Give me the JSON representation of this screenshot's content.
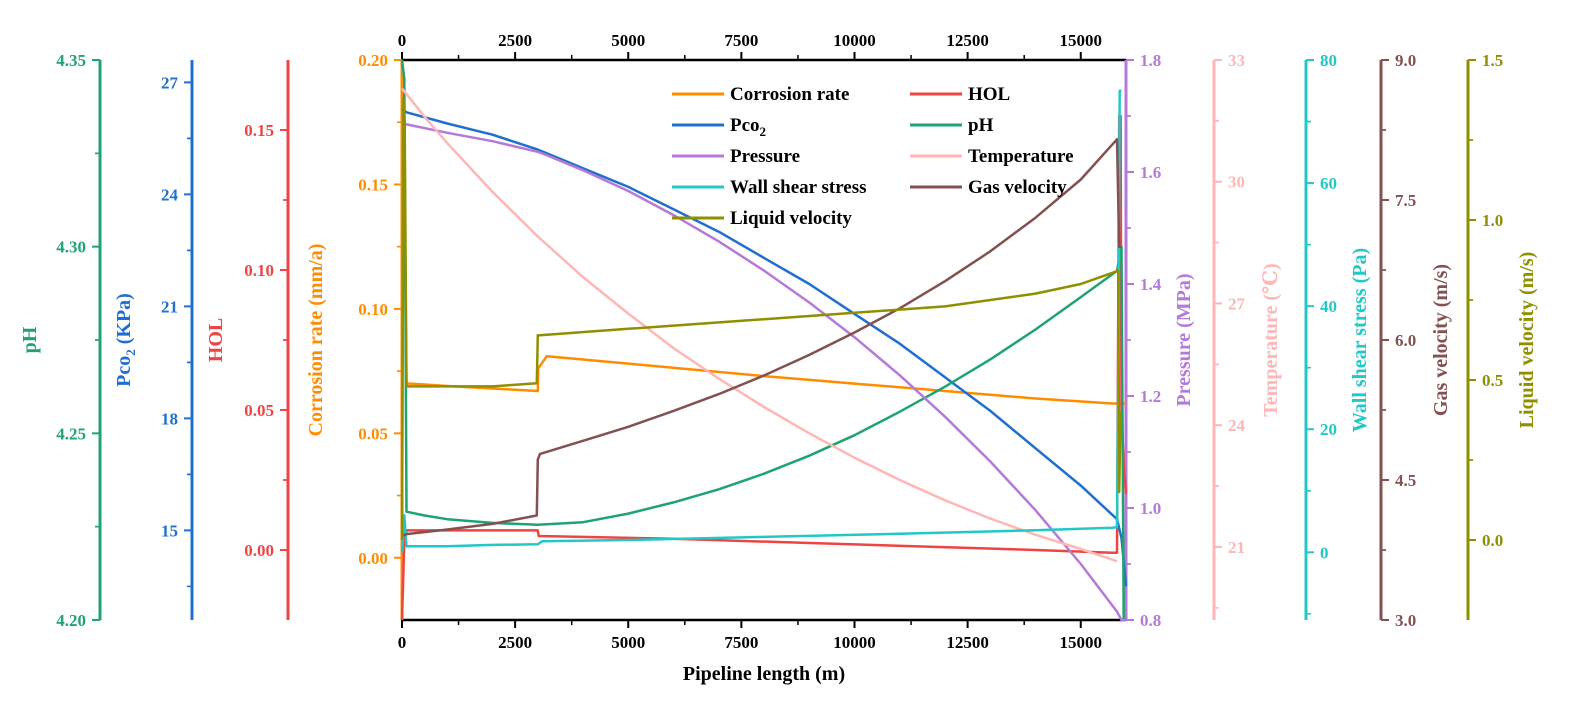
{
  "chart_data": {
    "type": "line",
    "xlabel": "Pipeline length (m)",
    "x_ticks": [
      0,
      2500,
      5000,
      7500,
      10000,
      12500,
      15000
    ],
    "x_ticks_top": [
      0,
      2500,
      5000,
      7500,
      10000,
      12500,
      15000
    ],
    "xlim": [
      0,
      16000
    ],
    "grid": false,
    "legend_position": "top-center",
    "axes": [
      {
        "id": "corr",
        "label": "Corrosion rate (mm/a)",
        "color": "#FF8C00",
        "ylim": [
          -0.025,
          0.2
        ],
        "ticks": [
          0.0,
          0.05,
          0.1,
          0.15,
          0.2
        ],
        "tick_labels": [
          "0.00",
          "0.05",
          "0.10",
          "0.15",
          "0.20"
        ],
        "side": "left-main"
      },
      {
        "id": "hol",
        "label": "HOL",
        "color": "#EE4444",
        "ylim": [
          -0.025,
          0.175
        ],
        "ticks": [
          0.0,
          0.05,
          0.1,
          0.15
        ],
        "tick_labels": [
          "0.00",
          "0.05",
          "0.10",
          "0.15"
        ],
        "side": "left"
      },
      {
        "id": "pco2",
        "label": "Pco₂ (KPa)",
        "color": "#1F6FD0",
        "ylim": [
          12.6,
          27.6
        ],
        "ticks": [
          15,
          18,
          21,
          24,
          27
        ],
        "tick_labels": [
          "15",
          "18",
          "21",
          "24",
          "27"
        ],
        "side": "left"
      },
      {
        "id": "ph",
        "label": "pH",
        "color": "#1FA371",
        "ylim": [
          4.2,
          4.35
        ],
        "ticks": [
          4.2,
          4.25,
          4.3,
          4.35
        ],
        "tick_labels": [
          "4.20",
          "4.25",
          "4.30",
          "4.35"
        ],
        "side": "left"
      },
      {
        "id": "press",
        "label": "Pressure (MPa)",
        "color": "#B57AD8",
        "ylim": [
          0.8,
          1.8
        ],
        "ticks": [
          0.8,
          1.0,
          1.2,
          1.4,
          1.6,
          1.8
        ],
        "tick_labels": [
          "0.8",
          "1.0",
          "1.2",
          "1.4",
          "1.6",
          "1.8"
        ],
        "side": "right-main"
      },
      {
        "id": "temp",
        "label": "Temperature (℃)",
        "color": "#FFB6B6",
        "ylim": [
          19.2,
          33
        ],
        "ticks": [
          21,
          24,
          27,
          30,
          33
        ],
        "tick_labels": [
          "21",
          "24",
          "27",
          "30",
          "33"
        ],
        "side": "right"
      },
      {
        "id": "wss",
        "label": "Wall shear stress (Pa)",
        "color": "#22C8C8",
        "ylim": [
          -11,
          80
        ],
        "ticks": [
          0,
          20,
          40,
          60,
          80
        ],
        "tick_labels": [
          "0",
          "20",
          "40",
          "60",
          "80"
        ],
        "side": "right"
      },
      {
        "id": "gasv",
        "label": "Gas velocity (m/s)",
        "color": "#845050",
        "ylim": [
          3.0,
          9.0
        ],
        "ticks": [
          3.0,
          4.5,
          6.0,
          7.5,
          9.0
        ],
        "tick_labels": [
          "3.0",
          "4.5",
          "6.0",
          "7.5",
          "9.0"
        ],
        "side": "right"
      },
      {
        "id": "liqv",
        "label": "Liquid velocity (m/s)",
        "color": "#8F8F00",
        "ylim": [
          -0.25,
          1.5
        ],
        "ticks": [
          0.0,
          0.5,
          1.0,
          1.5
        ],
        "tick_labels": [
          "0.0",
          "0.5",
          "1.0",
          "1.5"
        ],
        "side": "right"
      }
    ],
    "series": [
      {
        "name": "Corrosion rate",
        "axis": "corr",
        "color": "#FF8C00",
        "x": [
          0,
          30,
          100,
          200,
          1000,
          2000,
          3000,
          3010,
          3200,
          5000,
          8000,
          10000,
          12000,
          14000,
          15700,
          15780,
          15820,
          15850,
          15870,
          15900,
          15950,
          16000
        ],
        "y": [
          0.0,
          0.18,
          0.07,
          0.07,
          0.069,
          0.068,
          0.067,
          0.076,
          0.081,
          0.078,
          0.073,
          0.07,
          0.067,
          0.064,
          0.062,
          0.062,
          0.062,
          0.062,
          0.062,
          0.062,
          0.062,
          0.062
        ]
      },
      {
        "name": "HOL",
        "axis": "hol",
        "color": "#EE4444",
        "x": [
          0,
          50,
          100,
          200,
          3000,
          3020,
          6000,
          10000,
          14000,
          15700,
          15800,
          15850,
          15880,
          15900,
          15950,
          16000
        ],
        "y": [
          -0.025,
          0.003,
          0.007,
          0.007,
          0.007,
          0.005,
          0.004,
          0.002,
          0.0,
          -0.001,
          -0.001,
          0.155,
          0.155,
          0.05,
          0.03,
          0.02
        ],
        "note": "curve"
      },
      {
        "name": "Pco₂",
        "axis": "pco2",
        "color": "#1F6FD0",
        "x": [
          0,
          100,
          1000,
          2000,
          3000,
          3200,
          4000,
          5000,
          6000,
          7000,
          8000,
          9000,
          10000,
          11000,
          12000,
          13000,
          14000,
          15000,
          15800,
          15900,
          16000
        ],
        "y": [
          26.3,
          26.2,
          25.9,
          25.6,
          25.2,
          25.1,
          24.7,
          24.2,
          23.6,
          23.0,
          22.3,
          21.6,
          20.8,
          20.0,
          19.1,
          18.2,
          17.2,
          16.2,
          15.3,
          14.8,
          13.5
        ]
      },
      {
        "name": "pH",
        "axis": "ph",
        "color": "#1FA371",
        "x": [
          0,
          50,
          100,
          500,
          1000,
          2000,
          3000,
          4000,
          5000,
          6000,
          7000,
          8000,
          9000,
          10000,
          11000,
          12000,
          13000,
          14000,
          15000,
          15800,
          15900,
          15950,
          16000
        ],
        "y": [
          4.35,
          4.345,
          4.229,
          4.228,
          4.227,
          4.226,
          4.2255,
          4.2262,
          4.2285,
          4.2315,
          4.235,
          4.2392,
          4.244,
          4.2495,
          4.2558,
          4.2625,
          4.2698,
          4.2778,
          4.2865,
          4.2935,
          4.3,
          4.2,
          4.2
        ],
        "note": "curve"
      },
      {
        "name": "Pressure",
        "axis": "press",
        "color": "#B57AD8",
        "x": [
          0,
          100,
          1000,
          2000,
          3000,
          3200,
          4000,
          5000,
          6000,
          7000,
          8000,
          9000,
          10000,
          11000,
          12000,
          13000,
          14000,
          15000,
          15800,
          15900,
          16000
        ],
        "y": [
          1.69,
          1.685,
          1.67,
          1.655,
          1.636,
          1.63,
          1.603,
          1.566,
          1.523,
          1.476,
          1.424,
          1.367,
          1.305,
          1.237,
          1.163,
          1.083,
          0.996,
          0.9,
          0.815,
          0.8,
          0.8
        ]
      },
      {
        "name": "Temperature",
        "axis": "temp",
        "color": "#FFB6B6",
        "x": [
          0,
          500,
          1000,
          2000,
          3000,
          4000,
          5000,
          6000,
          7000,
          8000,
          9000,
          10000,
          11000,
          12000,
          13000,
          14000,
          15000,
          15800
        ],
        "y": [
          32.3,
          31.6,
          30.95,
          29.75,
          28.65,
          27.65,
          26.75,
          25.9,
          25.15,
          24.45,
          23.8,
          23.2,
          22.65,
          22.15,
          21.7,
          21.3,
          20.95,
          20.65
        ]
      },
      {
        "name": "Wall shear stress",
        "axis": "wss",
        "color": "#22C8C8",
        "x": [
          0,
          50,
          100,
          500,
          1000,
          2000,
          3000,
          3100,
          5000,
          8000,
          11000,
          14000,
          15700,
          15800,
          15830,
          15860,
          15900
        ],
        "y": [
          0,
          6,
          1,
          1,
          1,
          1.2,
          1.3,
          1.8,
          2.0,
          2.5,
          3.0,
          3.6,
          4.0,
          4.1,
          30,
          75,
          75
        ]
      },
      {
        "name": "Gas velocity",
        "axis": "gasv",
        "color": "#845050",
        "x": [
          0,
          100,
          1000,
          2000,
          2980,
          3000,
          3050,
          4000,
          5000,
          6000,
          7000,
          8000,
          9000,
          10000,
          11000,
          12000,
          13000,
          14000,
          15000,
          15800,
          15850,
          15900
        ],
        "y": [
          3.9,
          3.92,
          3.97,
          4.03,
          4.12,
          4.72,
          4.78,
          4.92,
          5.07,
          5.24,
          5.42,
          5.62,
          5.84,
          6.08,
          6.34,
          6.63,
          6.95,
          7.31,
          7.72,
          8.15,
          7.0,
          7.0
        ]
      },
      {
        "name": "Liquid velocity",
        "axis": "liqv",
        "color": "#8F8F00",
        "x": [
          0,
          30,
          60,
          100,
          1000,
          2000,
          2980,
          3000,
          3050,
          5000,
          8000,
          10000,
          12000,
          14000,
          15000,
          15800,
          15830,
          15850,
          15880,
          15900
        ],
        "y": [
          0.0,
          1.38,
          1.3,
          0.48,
          0.48,
          0.48,
          0.49,
          0.64,
          0.64,
          0.66,
          0.69,
          0.71,
          0.73,
          0.77,
          0.8,
          0.84,
          0.84,
          0.15,
          0.4,
          0.4
        ]
      }
    ],
    "legend": [
      "Corrosion rate",
      "HOL",
      "Pco₂",
      "pH",
      "Pressure",
      "Temperature",
      "Wall shear stress",
      "Gas velocity",
      "Liquid velocity"
    ]
  }
}
